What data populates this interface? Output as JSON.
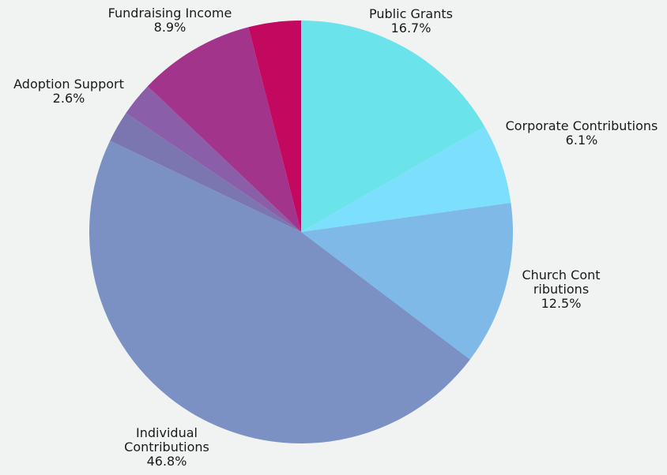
{
  "chart_data": {
    "type": "pie",
    "title": "",
    "start_angle_deg": 0,
    "direction": "clockwise",
    "legend": "none",
    "slices": [
      {
        "label": "Public Grants",
        "value": 16.7,
        "display": "16.7%",
        "color": "#6ae4ea"
      },
      {
        "label": "Corporate Contributions",
        "value": 6.1,
        "display": "6.1%",
        "color": "#7cdffc"
      },
      {
        "label": "Church Contributions",
        "value": 12.5,
        "display": "12.5%",
        "color": "#7eb9e8"
      },
      {
        "label": "Individual Contributions",
        "value": 46.8,
        "display": "46.8%",
        "color": "#7b91c3"
      },
      {
        "label": "",
        "value": 2.4,
        "display": "",
        "color": "#7b76b0"
      },
      {
        "label": "Adoption Support",
        "value": 2.6,
        "display": "2.6%",
        "color": "#8b5ea9"
      },
      {
        "label": "Fundraising Income",
        "value": 8.9,
        "display": "8.9%",
        "color": "#a3348b"
      },
      {
        "label": "",
        "value": 4.0,
        "display": "",
        "color": "#c2095f"
      }
    ]
  }
}
